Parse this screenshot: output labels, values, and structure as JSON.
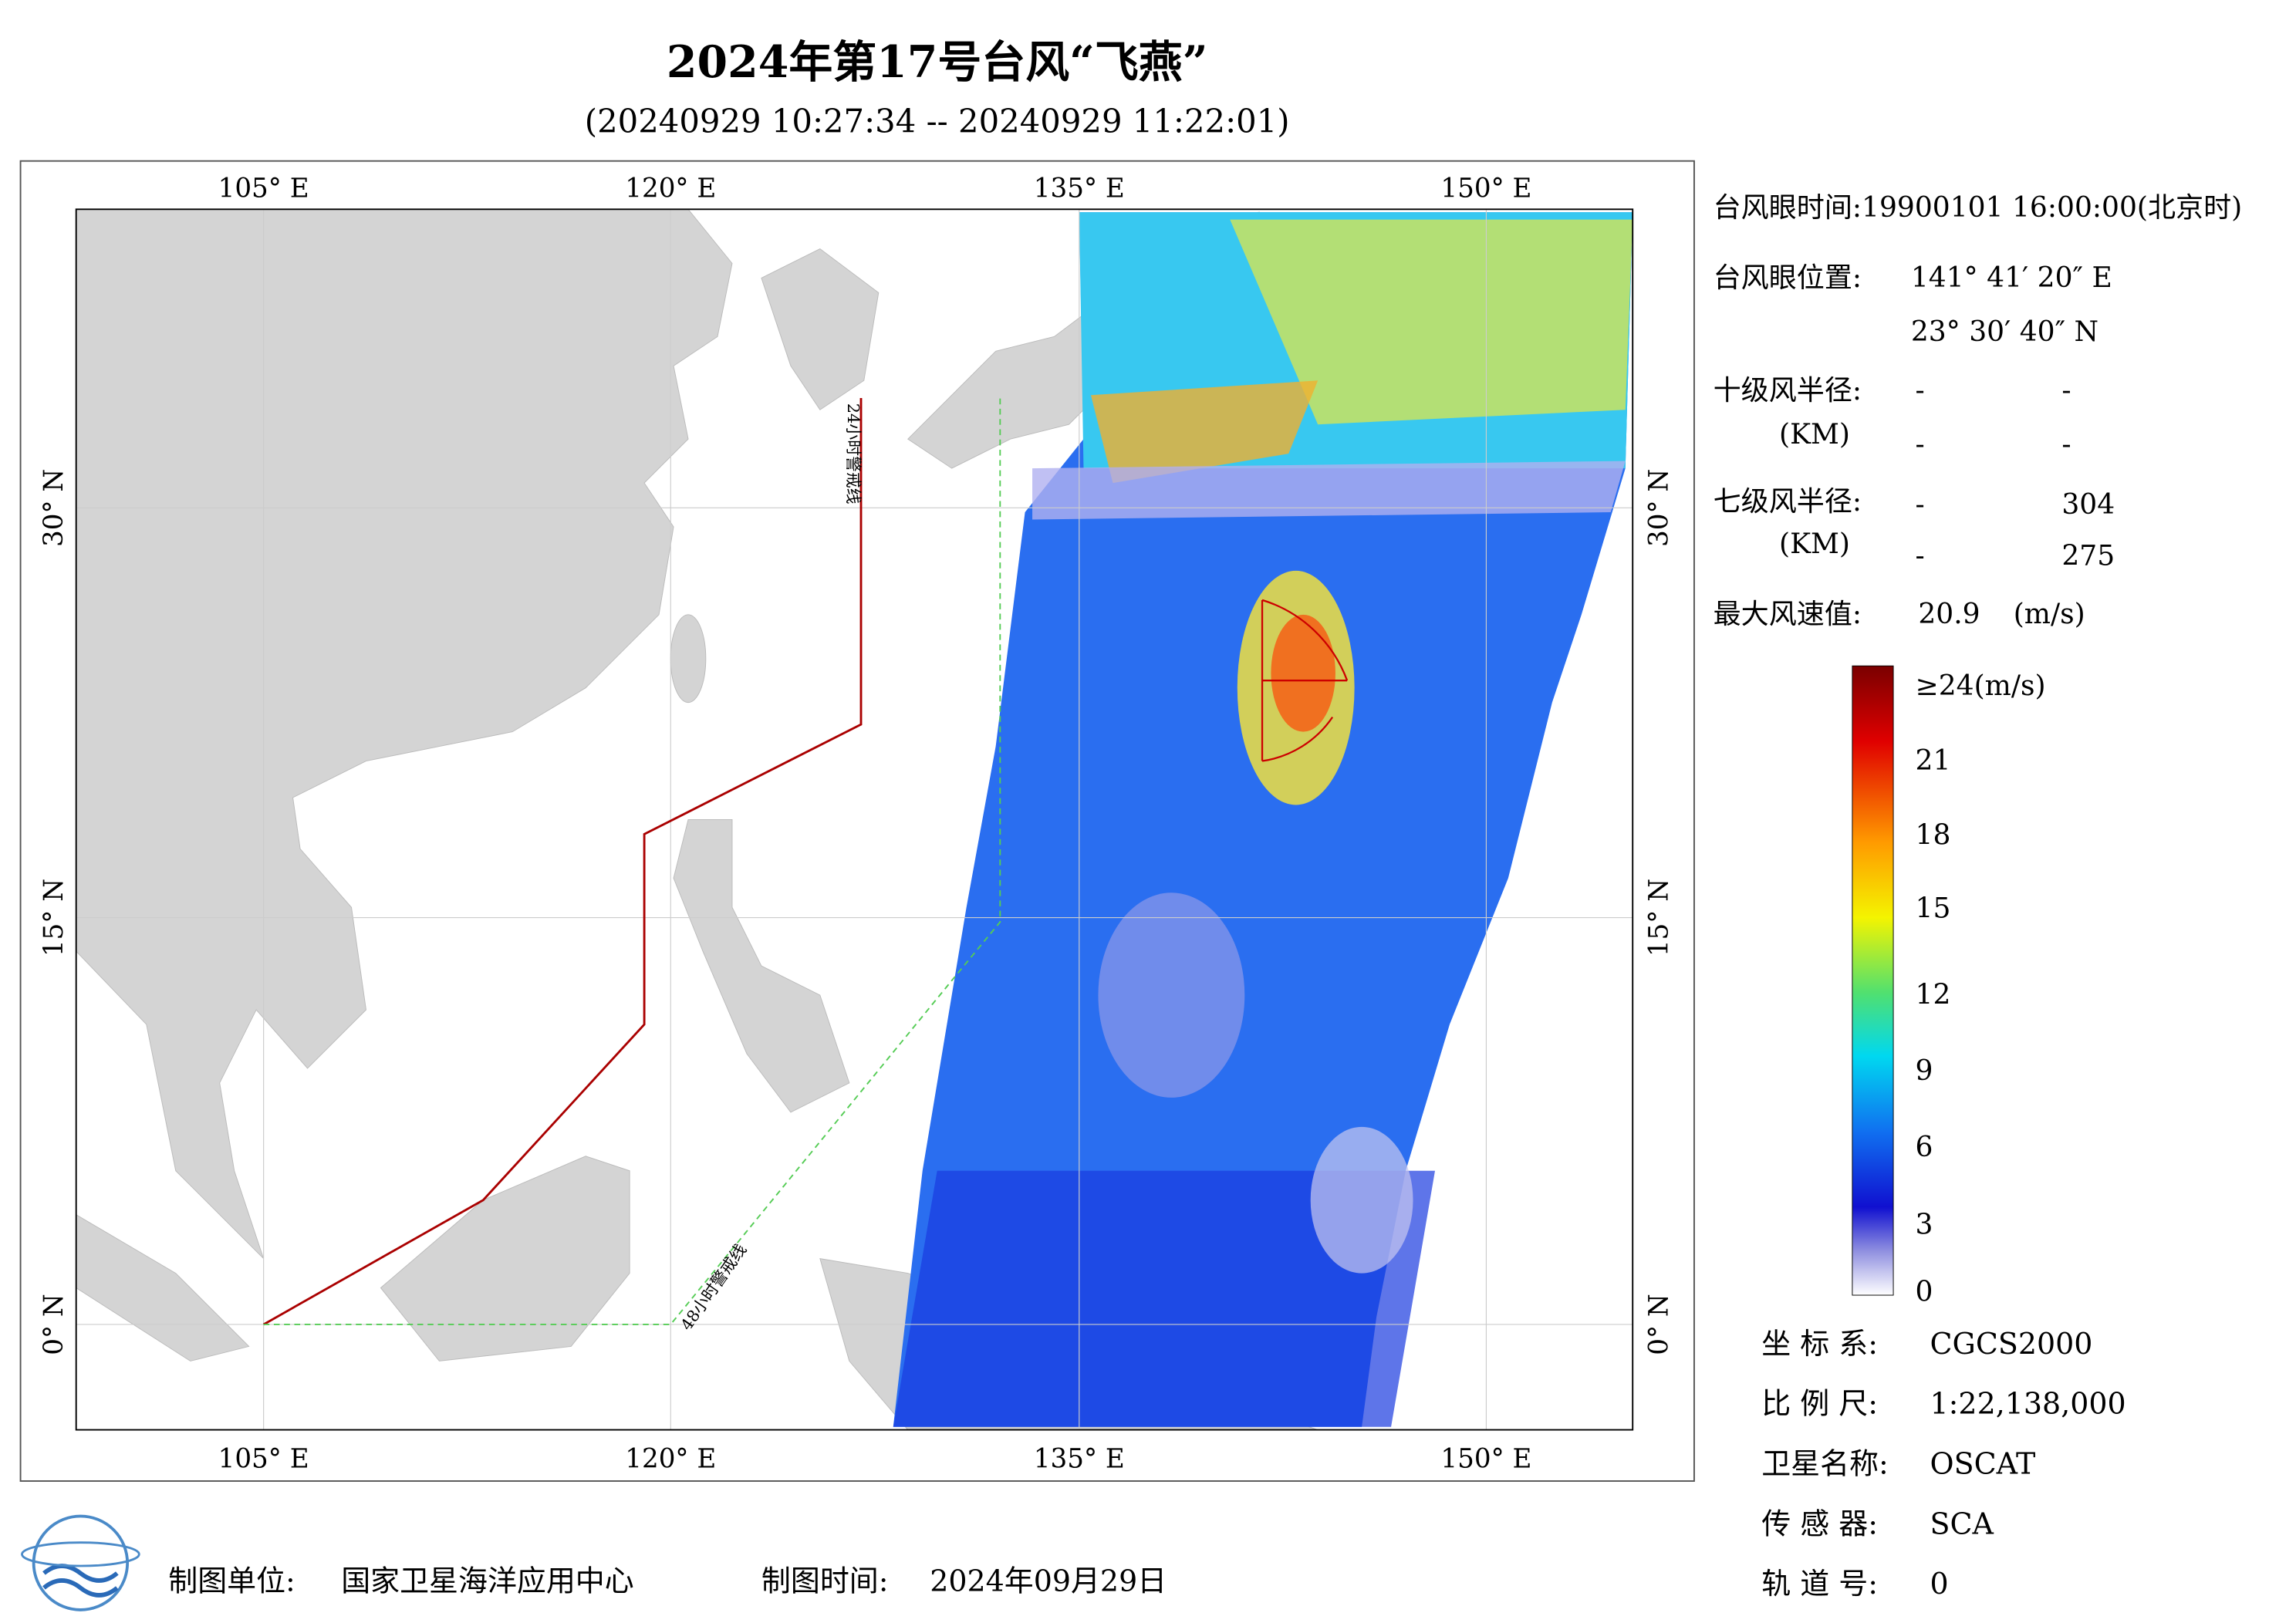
{
  "header": {
    "title": "2024年第17号台风“飞燕”",
    "subtitle": "(20240929 10:27:34 -- 20240929 11:22:01)"
  },
  "map": {
    "lon_ticks": [
      "105° E",
      "120° E",
      "135° E",
      "150° E"
    ],
    "lat_ticks": [
      "30° N",
      "15° N",
      "0° N"
    ],
    "lines": {
      "warning_24h": "24小时警戒线",
      "warning_48h": "48小时警戒线"
    }
  },
  "info": {
    "eye_time": "台风眼时间:19900101 16:00:00(北京时)",
    "eye_position_label": "台风眼位置:",
    "eye_lon": "141° 41′ 20″ E",
    "eye_lat": "23° 30′ 40″ N",
    "r10_label": "十级风半径:",
    "r10_unit": "(KM)",
    "r10_values": [
      "-",
      "-",
      "-",
      "-"
    ],
    "r7_label": "七级风半径:",
    "r7_unit": "(KM)",
    "r7_values": [
      "-",
      "304",
      "-",
      "275"
    ],
    "max_wind_label": "最大风速值:",
    "max_wind_value": "20.9",
    "max_wind_unit": "(m/s)"
  },
  "colorbar": {
    "labels": [
      "≥24(m/s)",
      "21",
      "18",
      "15",
      "12",
      "9",
      "6",
      "3",
      "0"
    ]
  },
  "metadata": [
    [
      "坐 标 系:",
      "CGCS2000"
    ],
    [
      "比 例 尺:",
      "1:22,138,000"
    ],
    [
      "卫星名称:",
      "OSCAT"
    ],
    [
      "传 感 器:",
      "SCA"
    ],
    [
      "轨 道 号:",
      "0"
    ]
  ],
  "footer": {
    "unit_label": "制图单位:",
    "unit": "国家卫星海洋应用中心",
    "time_label": "制图时间:",
    "time": "2024年09月29日"
  }
}
